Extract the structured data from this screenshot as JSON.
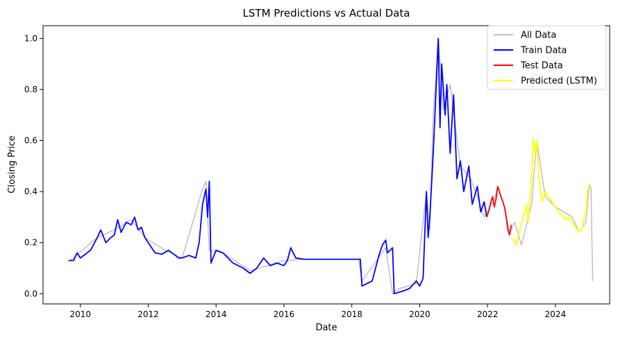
{
  "chart_data": {
    "type": "line",
    "title": "LSTM Predictions vs Actual Data",
    "xlabel": "Date",
    "ylabel": "Closing Price",
    "xlim": [
      2008.9,
      2025.6
    ],
    "ylim": [
      -0.04,
      1.05
    ],
    "x_ticks": [
      2010,
      2012,
      2014,
      2016,
      2018,
      2020,
      2022,
      2024
    ],
    "x_tick_labels": [
      "2010",
      "2012",
      "2014",
      "2016",
      "2018",
      "2020",
      "2022",
      "2024"
    ],
    "y_ticks": [
      0.0,
      0.2,
      0.4,
      0.6,
      0.8,
      1.0
    ],
    "y_tick_labels": [
      "0.0",
      "0.2",
      "0.4",
      "0.6",
      "0.8",
      "1.0"
    ],
    "grid": false,
    "legend": {
      "position": "upper right"
    },
    "series": [
      {
        "name": "All Data",
        "color": "#bfbfbf",
        "x": [
          2009.7,
          2010.5,
          2011.0,
          2011.5,
          2011.9,
          2012.5,
          2013.0,
          2013.6,
          2013.7,
          2013.8,
          2014.2,
          2015.0,
          2016.0,
          2016.6,
          2018.2,
          2018.3,
          2019.0,
          2019.2,
          2019.4,
          2019.9,
          2020.2,
          2020.3,
          2020.4,
          2020.55,
          2020.7,
          2020.9,
          2021.2,
          2021.5,
          2021.7,
          2021.9,
          2022.2,
          2022.3,
          2022.5,
          2022.65,
          2022.8,
          2023.0,
          2023.3,
          2023.45,
          2023.7,
          2024.0,
          2024.5,
          2024.7,
          2024.9,
          2025.0,
          2025.05,
          2025.1
        ],
        "y": [
          0.13,
          0.22,
          0.25,
          0.29,
          0.22,
          0.17,
          0.14,
          0.41,
          0.44,
          0.17,
          0.16,
          0.09,
          0.13,
          0.135,
          0.135,
          0.05,
          0.18,
          0.0,
          0.02,
          0.04,
          0.4,
          0.25,
          0.7,
          1.0,
          0.72,
          0.82,
          0.5,
          0.45,
          0.38,
          0.3,
          0.37,
          0.42,
          0.34,
          0.24,
          0.28,
          0.19,
          0.35,
          0.6,
          0.38,
          0.34,
          0.3,
          0.24,
          0.28,
          0.43,
          0.41,
          0.05
        ]
      },
      {
        "name": "Train Data",
        "color": "#0000ff",
        "x": [
          2009.65,
          2009.8,
          2009.9,
          2010.0,
          2010.1,
          2010.3,
          2010.5,
          2010.6,
          2010.75,
          2010.9,
          2011.0,
          2011.1,
          2011.2,
          2011.35,
          2011.5,
          2011.6,
          2011.7,
          2011.8,
          2011.9,
          2012.0,
          2012.2,
          2012.4,
          2012.6,
          2012.9,
          2013.0,
          2013.2,
          2013.4,
          2013.5,
          2013.6,
          2013.7,
          2013.75,
          2013.8,
          2013.85,
          2014.0,
          2014.2,
          2014.5,
          2014.8,
          2015.0,
          2015.2,
          2015.4,
          2015.6,
          2015.8,
          2016.0,
          2016.1,
          2016.2,
          2016.35,
          2016.6,
          2018.25,
          2018.3,
          2018.6,
          2018.8,
          2018.9,
          2019.0,
          2019.05,
          2019.2,
          2019.25,
          2019.5,
          2019.7,
          2019.9,
          2020.0,
          2020.1,
          2020.2,
          2020.25,
          2020.3,
          2020.4,
          2020.5,
          2020.55,
          2020.6,
          2020.65,
          2020.75,
          2020.8,
          2020.9,
          2021.0,
          2021.1,
          2021.2,
          2021.3,
          2021.45,
          2021.55,
          2021.7,
          2021.8,
          2021.9,
          2021.98
        ],
        "y": [
          0.13,
          0.13,
          0.16,
          0.14,
          0.15,
          0.17,
          0.22,
          0.25,
          0.2,
          0.22,
          0.23,
          0.29,
          0.24,
          0.28,
          0.27,
          0.3,
          0.25,
          0.26,
          0.22,
          0.2,
          0.16,
          0.155,
          0.17,
          0.14,
          0.14,
          0.15,
          0.14,
          0.2,
          0.35,
          0.41,
          0.3,
          0.44,
          0.12,
          0.17,
          0.16,
          0.12,
          0.1,
          0.08,
          0.1,
          0.14,
          0.11,
          0.12,
          0.11,
          0.13,
          0.18,
          0.14,
          0.135,
          0.135,
          0.03,
          0.05,
          0.15,
          0.19,
          0.21,
          0.16,
          0.18,
          0.0,
          0.01,
          0.02,
          0.05,
          0.03,
          0.06,
          0.4,
          0.22,
          0.3,
          0.55,
          0.85,
          1.0,
          0.65,
          0.9,
          0.7,
          0.82,
          0.55,
          0.78,
          0.45,
          0.52,
          0.4,
          0.5,
          0.35,
          0.42,
          0.32,
          0.36,
          0.3
        ]
      },
      {
        "name": "Test Data",
        "color": "#ff0000",
        "x": [
          2021.98,
          2022.05,
          2022.1,
          2022.15,
          2022.2,
          2022.25,
          2022.3,
          2022.35,
          2022.4,
          2022.45,
          2022.5,
          2022.55,
          2022.6,
          2022.65,
          2022.7
        ],
        "y": [
          0.3,
          0.33,
          0.36,
          0.38,
          0.34,
          0.37,
          0.42,
          0.4,
          0.38,
          0.36,
          0.34,
          0.3,
          0.25,
          0.23,
          0.27
        ]
      },
      {
        "name": "Predicted (LSTM)",
        "color": "#ffff00",
        "x": [
          2022.75,
          2022.85,
          2022.95,
          2023.05,
          2023.15,
          2023.2,
          2023.3,
          2023.35,
          2023.4,
          2023.45,
          2023.5,
          2023.6,
          2023.7,
          2023.8,
          2023.9,
          2024.0,
          2024.1,
          2024.2,
          2024.3,
          2024.4,
          2024.5,
          2024.6,
          2024.7,
          2024.8,
          2024.85,
          2024.9,
          2024.95,
          2025.0
        ],
        "y": [
          0.22,
          0.19,
          0.25,
          0.3,
          0.35,
          0.28,
          0.45,
          0.61,
          0.55,
          0.6,
          0.48,
          0.36,
          0.4,
          0.38,
          0.36,
          0.34,
          0.32,
          0.31,
          0.29,
          0.3,
          0.28,
          0.26,
          0.24,
          0.26,
          0.3,
          0.32,
          0.4,
          0.43
        ]
      }
    ]
  }
}
